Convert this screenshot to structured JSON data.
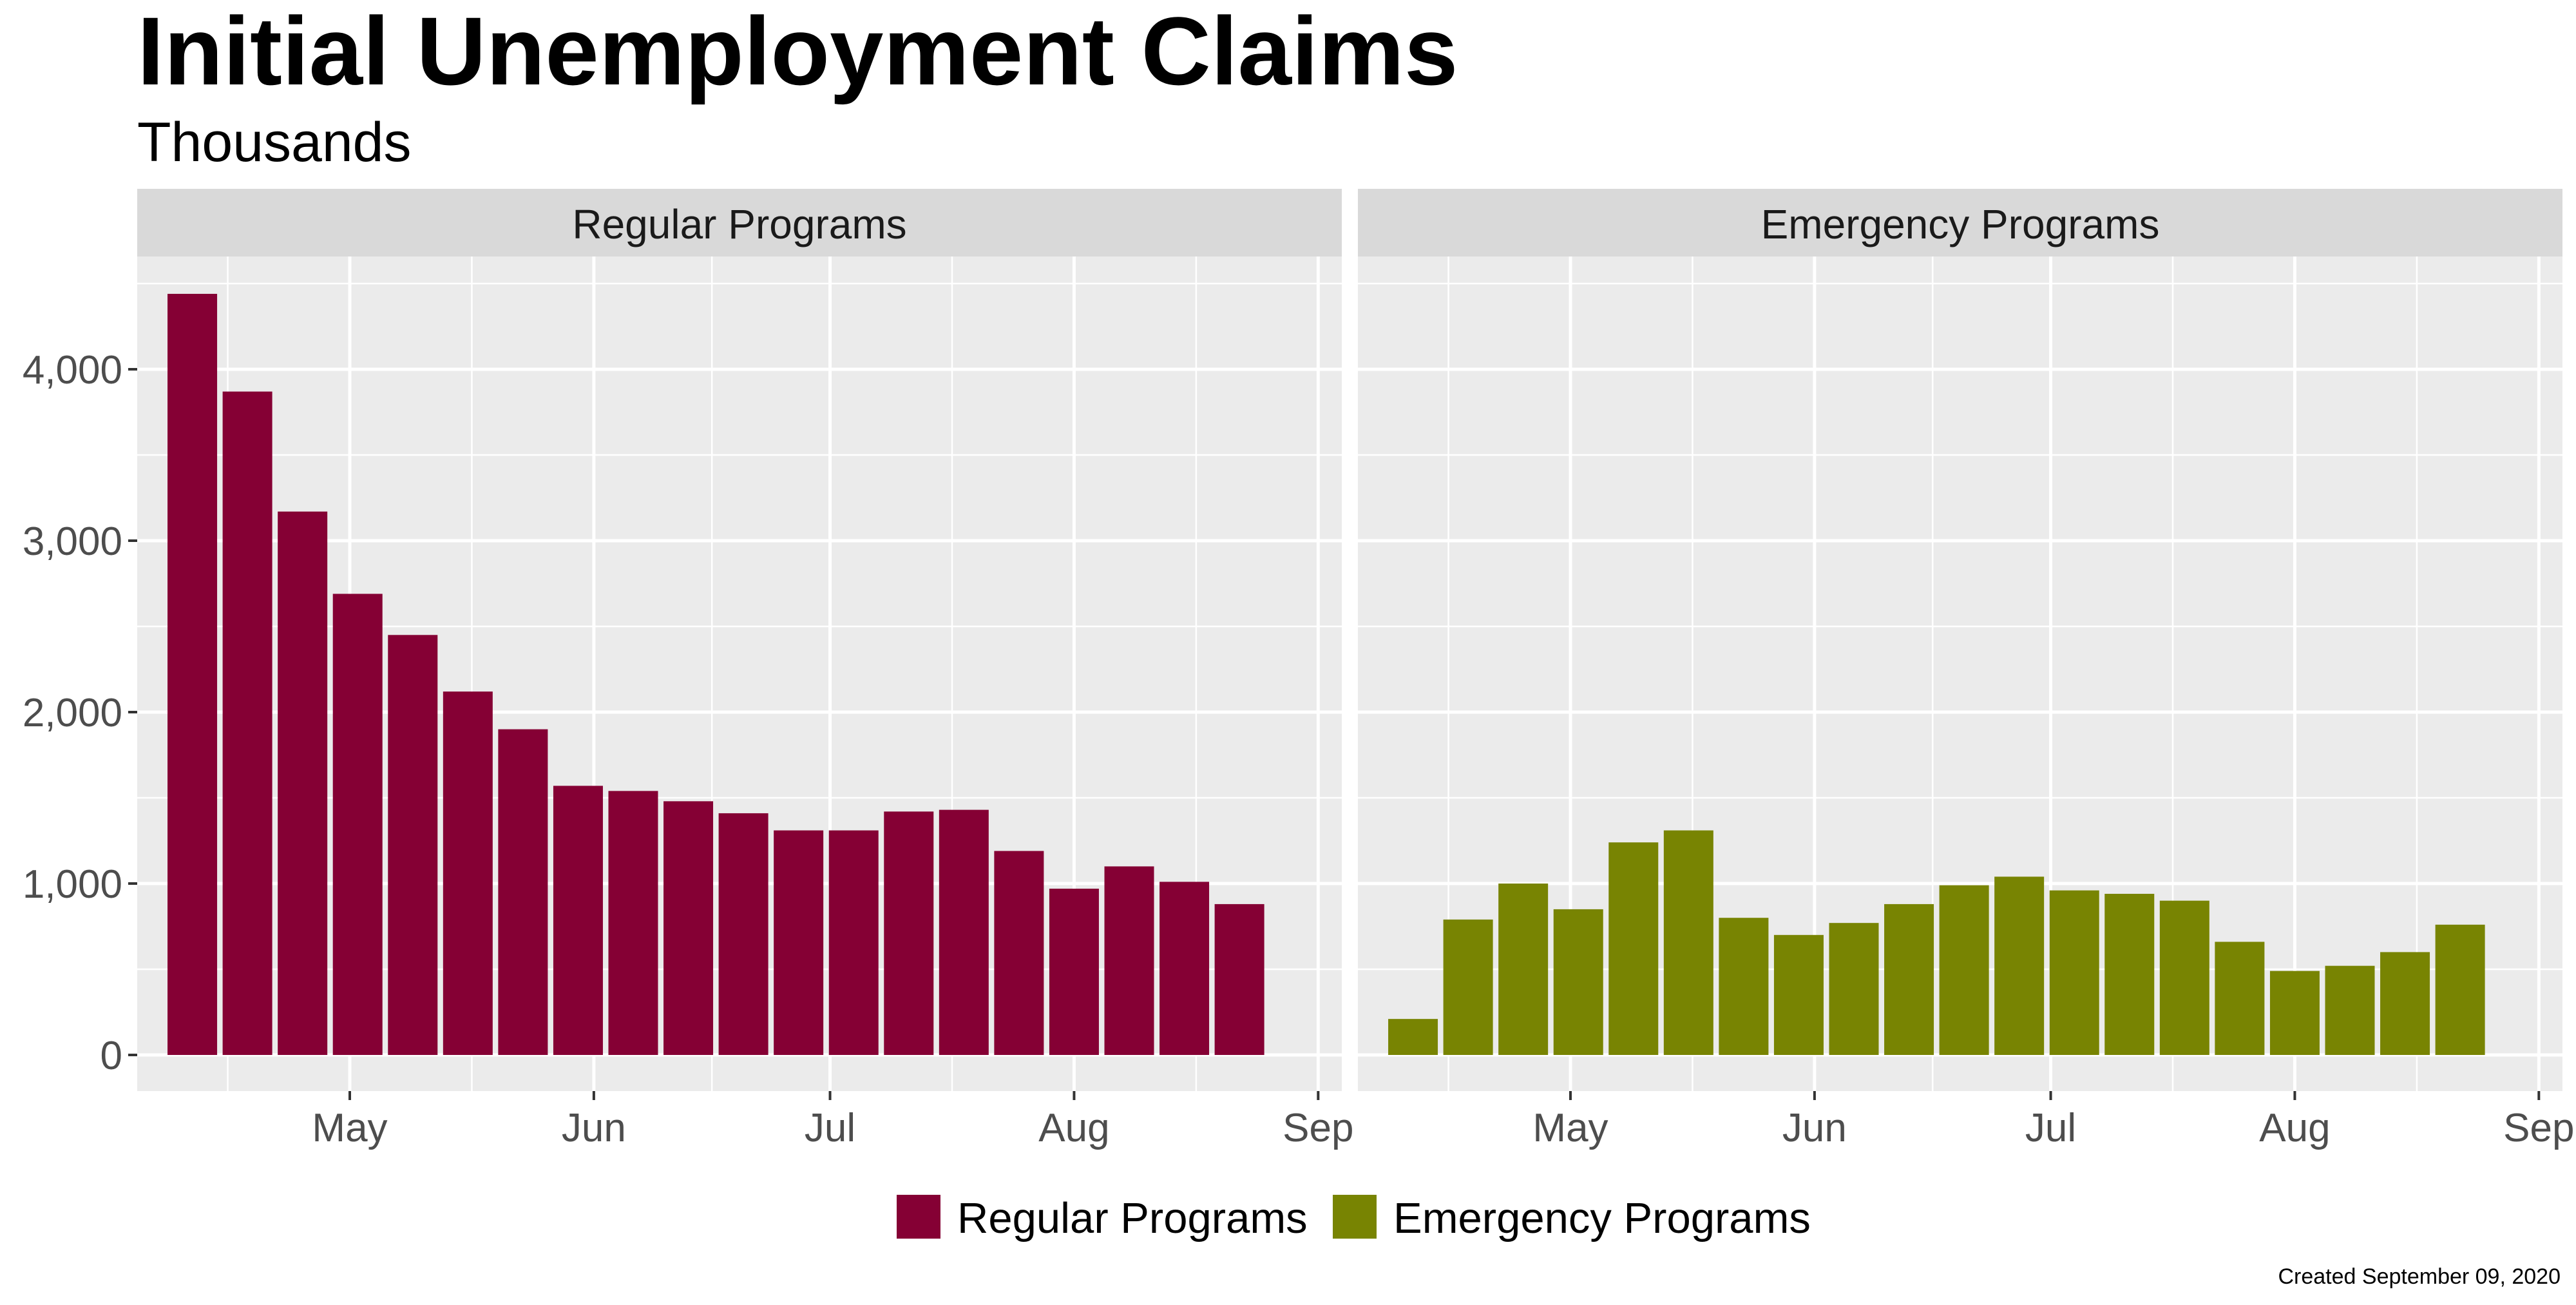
{
  "title": "Initial Unemployment Claims",
  "subtitle": "Thousands",
  "caption": "Created September 09, 2020",
  "colors": {
    "regular": "#850034",
    "emergency": "#788402",
    "panel_bg": "#ebebeb",
    "strip_bg": "#d9d9d9"
  },
  "legend": [
    {
      "label": "Regular Programs",
      "color": "#850034"
    },
    {
      "label": "Emergency Programs",
      "color": "#788402"
    }
  ],
  "chart_data": [
    {
      "type": "bar",
      "panel": "Regular Programs",
      "x": [
        "2020-04-11",
        "2020-04-18",
        "2020-04-25",
        "2020-05-02",
        "2020-05-09",
        "2020-05-16",
        "2020-05-23",
        "2020-05-30",
        "2020-06-06",
        "2020-06-13",
        "2020-06-20",
        "2020-06-27",
        "2020-07-04",
        "2020-07-11",
        "2020-07-18",
        "2020-07-25",
        "2020-08-01",
        "2020-08-08",
        "2020-08-15",
        "2020-08-22"
      ],
      "values": [
        4440,
        3870,
        3170,
        2690,
        2450,
        2120,
        1900,
        1570,
        1540,
        1480,
        1410,
        1310,
        1310,
        1420,
        1430,
        1190,
        970,
        1100,
        1010,
        880
      ],
      "x_ticks": [
        "May",
        "Jun",
        "Jul",
        "Aug",
        "Sep"
      ],
      "y_ticks": [
        "0",
        "1,000",
        "2,000",
        "3,000",
        "4,000"
      ],
      "ylim": [
        0,
        4600
      ]
    },
    {
      "type": "bar",
      "panel": "Emergency Programs",
      "x": [
        "2020-04-11",
        "2020-04-18",
        "2020-04-25",
        "2020-05-02",
        "2020-05-09",
        "2020-05-16",
        "2020-05-23",
        "2020-05-30",
        "2020-06-06",
        "2020-06-13",
        "2020-06-20",
        "2020-06-27",
        "2020-07-04",
        "2020-07-11",
        "2020-07-18",
        "2020-07-25",
        "2020-08-01",
        "2020-08-08",
        "2020-08-15",
        "2020-08-22"
      ],
      "values": [
        210,
        790,
        1000,
        850,
        1240,
        1310,
        800,
        700,
        770,
        880,
        990,
        1040,
        960,
        940,
        900,
        660,
        490,
        520,
        600,
        760
      ],
      "x_ticks": [
        "May",
        "Jun",
        "Jul",
        "Aug",
        "Sep"
      ],
      "ylim": [
        0,
        4600
      ]
    }
  ]
}
